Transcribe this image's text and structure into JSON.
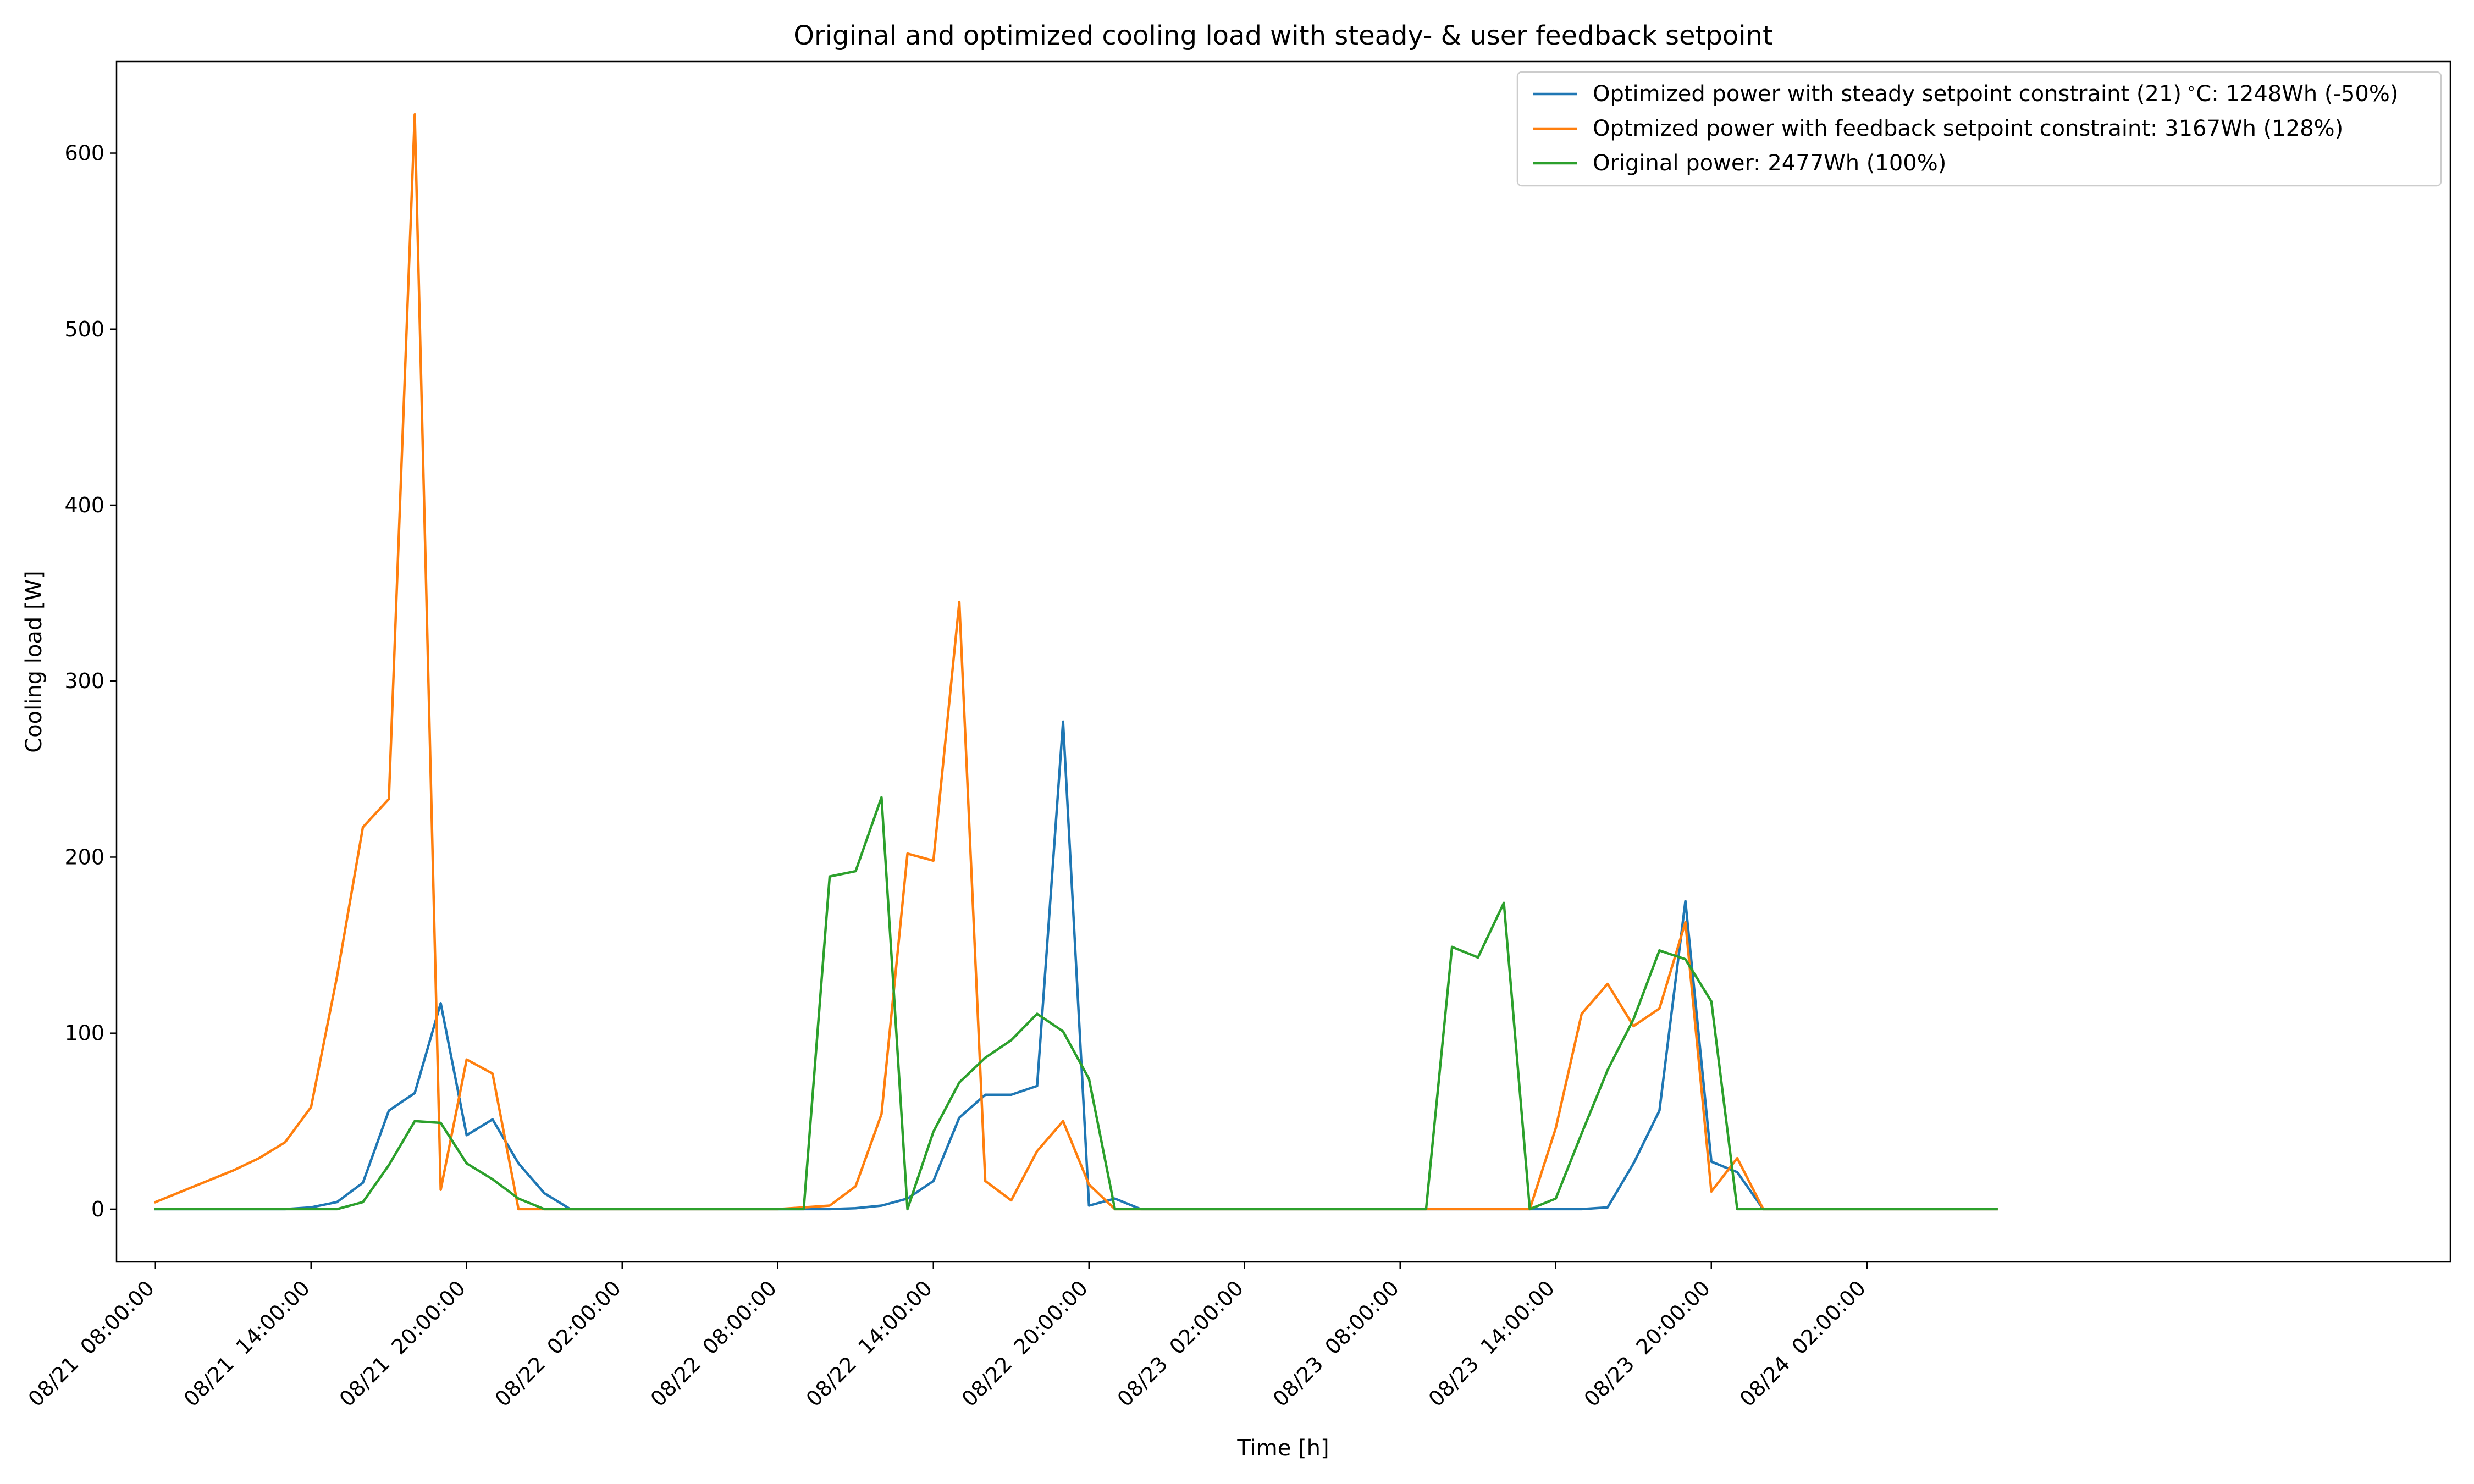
{
  "chart_data": {
    "type": "line",
    "title": "Original and optimized cooling load with steady- & user feedback setpoint",
    "xlabel": "Time [h]",
    "ylabel": "Cooling load [W]",
    "xlim": [
      "08/21 06:30",
      "08/25 00:30"
    ],
    "ylim": [
      -30,
      652
    ],
    "x_step_minutes": 60,
    "x_start": "08/21 08:00",
    "xticks": [
      "08/21  08:00:00",
      "08/21  14:00:00",
      "08/21  20:00:00",
      "08/22  02:00:00",
      "08/22  08:00:00",
      "08/22  14:00:00",
      "08/22  20:00:00",
      "08/23  02:00:00",
      "08/23  08:00:00",
      "08/23  14:00:00",
      "08/23  20:00:00",
      "08/24  02:00:00"
    ],
    "yticks": [
      0,
      100,
      200,
      300,
      400,
      500,
      600
    ],
    "grid": false,
    "legend_position": "top-right",
    "series": [
      {
        "name": "Optimized power with steady setpoint constraint (21)$^\\circ$C: 1248Wh (-50%)",
        "color": "#1f77b4",
        "values": [
          0,
          0,
          0,
          0,
          0,
          0,
          1,
          4,
          15,
          56,
          66,
          117,
          42,
          51,
          26,
          9,
          0,
          0,
          0,
          0,
          0,
          0,
          0,
          0,
          0,
          0,
          0,
          0.5,
          2,
          6,
          16,
          52,
          65,
          65,
          70,
          277,
          2,
          6,
          0,
          0,
          0,
          0,
          0,
          0,
          0,
          0,
          0,
          0,
          0,
          0,
          0,
          0,
          0,
          0,
          0,
          0,
          1,
          26,
          56,
          175,
          27,
          21,
          0,
          0,
          0,
          0,
          0,
          0,
          0,
          0,
          0,
          0
        ]
      },
      {
        "name": "Optmized power with feedback setpoint constraint: 3167Wh (128%)",
        "color": "#ff7f0e",
        "values": [
          4,
          10,
          16,
          22,
          29,
          38,
          58,
          132,
          217,
          233,
          622,
          11,
          85,
          77,
          0,
          0,
          0,
          0,
          0,
          0,
          0,
          0,
          0,
          0,
          0,
          1,
          2,
          13,
          54,
          202,
          198,
          345,
          16,
          5,
          33,
          50,
          14,
          0,
          0,
          0,
          0,
          0,
          0,
          0,
          0,
          0,
          0,
          0,
          0,
          0,
          0,
          0,
          0,
          0,
          46,
          111,
          128,
          104,
          114,
          163,
          10,
          29,
          0,
          0,
          0,
          0,
          0,
          0,
          0,
          0,
          0,
          0
        ]
      },
      {
        "name": "Original power: 2477Wh (100%)",
        "color": "#2ca02c",
        "values": [
          0,
          0,
          0,
          0,
          0,
          0,
          0,
          0,
          4,
          25,
          50,
          49,
          26,
          17,
          6,
          0,
          0,
          0,
          0,
          0,
          0,
          0,
          0,
          0,
          0,
          0,
          189,
          192,
          234,
          0,
          44,
          72,
          86,
          96,
          111,
          101,
          74,
          0,
          0,
          0,
          0,
          0,
          0,
          0,
          0,
          0,
          0,
          0,
          0,
          0,
          149,
          143,
          174,
          0,
          6,
          43,
          79,
          108,
          147,
          142,
          118,
          0,
          0,
          0,
          0,
          0,
          0,
          0,
          0,
          0,
          0,
          0
        ]
      }
    ]
  }
}
